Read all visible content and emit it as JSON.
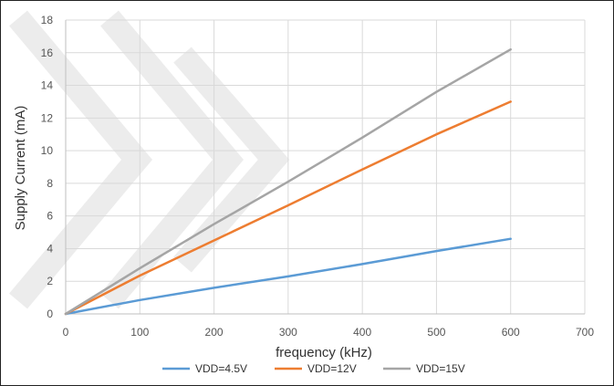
{
  "chart_data": {
    "type": "line",
    "title": "",
    "xlabel": "frequency (kHz)",
    "ylabel": "Supply Current (mA)",
    "xlim": [
      0,
      700
    ],
    "ylim": [
      0,
      18
    ],
    "xticks": [
      0,
      100,
      200,
      300,
      400,
      500,
      600,
      700
    ],
    "yticks": [
      0,
      2,
      4,
      6,
      8,
      10,
      12,
      14,
      16,
      18
    ],
    "grid": true,
    "legend_position": "bottom",
    "series": [
      {
        "name": "VDD=4.5V",
        "color": "#5b9bd5",
        "x": [
          0,
          100,
          200,
          300,
          400,
          500,
          600
        ],
        "y": [
          0,
          0.85,
          1.6,
          2.3,
          3.05,
          3.85,
          4.6
        ]
      },
      {
        "name": "VDD=12V",
        "color": "#ed7d31",
        "x": [
          0,
          100,
          200,
          300,
          400,
          500,
          600
        ],
        "y": [
          0,
          2.35,
          4.5,
          6.65,
          8.85,
          11.0,
          13.0
        ]
      },
      {
        "name": "VDD=15V",
        "color": "#a5a5a5",
        "x": [
          0,
          100,
          200,
          300,
          400,
          500,
          600
        ],
        "y": [
          0,
          2.8,
          5.5,
          8.1,
          10.8,
          13.6,
          16.2
        ]
      }
    ]
  }
}
